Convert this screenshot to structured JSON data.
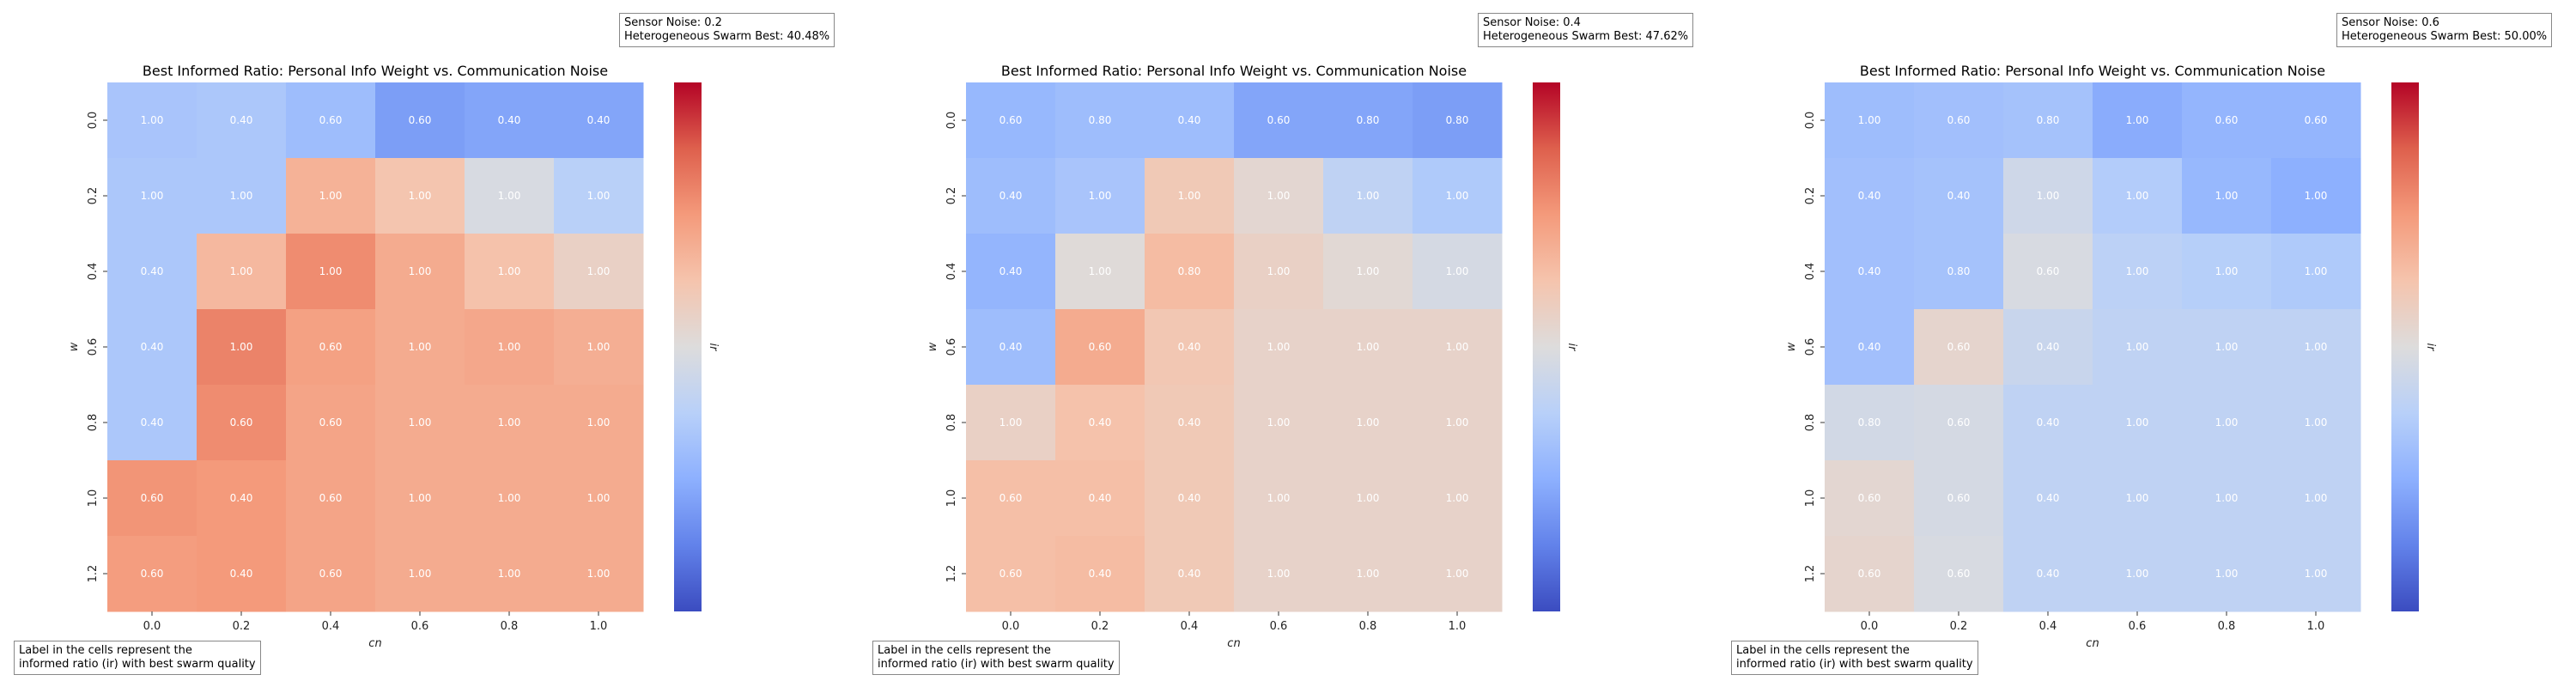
{
  "chart_data": [
    {
      "type": "heatmap",
      "title": "Best Informed Ratio: Personal Info Weight vs. Communication Noise",
      "xlabel": "cn",
      "ylabel": "w",
      "colorbar_label": "ir",
      "colormap": "coolwarm",
      "x": [
        "0.0",
        "0.2",
        "0.4",
        "0.6",
        "0.8",
        "1.0"
      ],
      "y": [
        "0.0",
        "0.2",
        "0.4",
        "0.6",
        "0.8",
        "1.0",
        "1.2"
      ],
      "color_values": [
        [
          0.33,
          0.34,
          0.3,
          0.2,
          0.22,
          0.22
        ],
        [
          0.34,
          0.34,
          0.68,
          0.62,
          0.48,
          0.38
        ],
        [
          0.34,
          0.66,
          0.78,
          0.7,
          0.63,
          0.56
        ],
        [
          0.34,
          0.8,
          0.73,
          0.7,
          0.71,
          0.69
        ],
        [
          0.34,
          0.78,
          0.72,
          0.7,
          0.7,
          0.7
        ],
        [
          0.76,
          0.75,
          0.72,
          0.7,
          0.7,
          0.7
        ],
        [
          0.74,
          0.75,
          0.72,
          0.7,
          0.7,
          0.7
        ]
      ],
      "labels": [
        [
          "1.00",
          "0.40",
          "0.60",
          "0.60",
          "0.40",
          "0.40"
        ],
        [
          "1.00",
          "1.00",
          "1.00",
          "1.00",
          "1.00",
          "1.00"
        ],
        [
          "0.40",
          "1.00",
          "1.00",
          "1.00",
          "1.00",
          "1.00"
        ],
        [
          "0.40",
          "1.00",
          "0.60",
          "1.00",
          "1.00",
          "1.00"
        ],
        [
          "0.40",
          "0.60",
          "0.60",
          "1.00",
          "1.00",
          "1.00"
        ],
        [
          "0.60",
          "0.40",
          "0.60",
          "1.00",
          "1.00",
          "1.00"
        ],
        [
          "0.60",
          "0.40",
          "0.60",
          "1.00",
          "1.00",
          "1.00"
        ]
      ],
      "info": [
        "Sensor Noise: 0.2",
        "Heterogeneous Swarm Best: 40.48%"
      ],
      "note": [
        "Label in the cells represent the",
        "informed ratio (ir) with best swarm quality"
      ]
    },
    {
      "type": "heatmap",
      "title": "Best Informed Ratio: Personal Info Weight vs. Communication Noise",
      "xlabel": "cn",
      "ylabel": "w",
      "colorbar_label": "ir",
      "colormap": "coolwarm",
      "x": [
        "0.0",
        "0.2",
        "0.4",
        "0.6",
        "0.8",
        "1.0"
      ],
      "y": [
        "0.0",
        "0.2",
        "0.4",
        "0.6",
        "0.8",
        "1.0",
        "1.2"
      ],
      "color_values": [
        [
          0.28,
          0.3,
          0.3,
          0.22,
          0.22,
          0.2
        ],
        [
          0.3,
          0.33,
          0.6,
          0.53,
          0.4,
          0.35
        ],
        [
          0.27,
          0.51,
          0.65,
          0.56,
          0.52,
          0.47
        ],
        [
          0.3,
          0.7,
          0.61,
          0.55,
          0.55,
          0.55
        ],
        [
          0.56,
          0.63,
          0.6,
          0.55,
          0.55,
          0.55
        ],
        [
          0.64,
          0.64,
          0.6,
          0.55,
          0.55,
          0.55
        ],
        [
          0.64,
          0.65,
          0.6,
          0.55,
          0.55,
          0.55
        ]
      ],
      "labels": [
        [
          "0.60",
          "0.80",
          "0.40",
          "0.60",
          "0.80",
          "0.80"
        ],
        [
          "0.40",
          "1.00",
          "1.00",
          "1.00",
          "1.00",
          "1.00"
        ],
        [
          "0.40",
          "1.00",
          "0.80",
          "1.00",
          "1.00",
          "1.00"
        ],
        [
          "0.40",
          "0.60",
          "0.40",
          "1.00",
          "1.00",
          "1.00"
        ],
        [
          "1.00",
          "0.40",
          "0.40",
          "1.00",
          "1.00",
          "1.00"
        ],
        [
          "0.60",
          "0.40",
          "0.40",
          "1.00",
          "1.00",
          "1.00"
        ],
        [
          "0.60",
          "0.40",
          "0.40",
          "1.00",
          "1.00",
          "1.00"
        ]
      ],
      "info": [
        "Sensor Noise: 0.4",
        "Heterogeneous Swarm Best: 47.62%"
      ],
      "note": [
        "Label in the cells represent the",
        "informed ratio (ir) with best swarm quality"
      ]
    },
    {
      "type": "heatmap",
      "title": "Best Informed Ratio: Personal Info Weight vs. Communication Noise",
      "xlabel": "cn",
      "ylabel": "w",
      "colorbar_label": "ir",
      "colormap": "coolwarm",
      "x": [
        "0.0",
        "0.2",
        "0.4",
        "0.6",
        "0.8",
        "1.0"
      ],
      "y": [
        "0.0",
        "0.2",
        "0.4",
        "0.6",
        "0.8",
        "1.0",
        "1.2"
      ],
      "color_values": [
        [
          0.3,
          0.31,
          0.32,
          0.24,
          0.27,
          0.27
        ],
        [
          0.31,
          0.32,
          0.45,
          0.36,
          0.28,
          0.25
        ],
        [
          0.31,
          0.32,
          0.48,
          0.39,
          0.37,
          0.35
        ],
        [
          0.31,
          0.54,
          0.43,
          0.4,
          0.4,
          0.4
        ],
        [
          0.46,
          0.47,
          0.4,
          0.4,
          0.4,
          0.4
        ],
        [
          0.53,
          0.47,
          0.4,
          0.4,
          0.4,
          0.4
        ],
        [
          0.54,
          0.48,
          0.4,
          0.4,
          0.4,
          0.4
        ]
      ],
      "labels": [
        [
          "1.00",
          "0.60",
          "0.80",
          "1.00",
          "0.60",
          "0.60"
        ],
        [
          "0.40",
          "0.40",
          "1.00",
          "1.00",
          "1.00",
          "1.00"
        ],
        [
          "0.40",
          "0.80",
          "0.60",
          "1.00",
          "1.00",
          "1.00"
        ],
        [
          "0.40",
          "0.60",
          "0.40",
          "1.00",
          "1.00",
          "1.00"
        ],
        [
          "0.80",
          "0.60",
          "0.40",
          "1.00",
          "1.00",
          "1.00"
        ],
        [
          "0.60",
          "0.60",
          "0.40",
          "1.00",
          "1.00",
          "1.00"
        ],
        [
          "0.60",
          "0.60",
          "0.40",
          "1.00",
          "1.00",
          "1.00"
        ]
      ],
      "info": [
        "Sensor Noise: 0.6",
        "Heterogeneous Swarm Best: 50.00%"
      ],
      "note": [
        "Label in the cells represent the",
        "informed ratio (ir) with best swarm quality"
      ]
    }
  ]
}
